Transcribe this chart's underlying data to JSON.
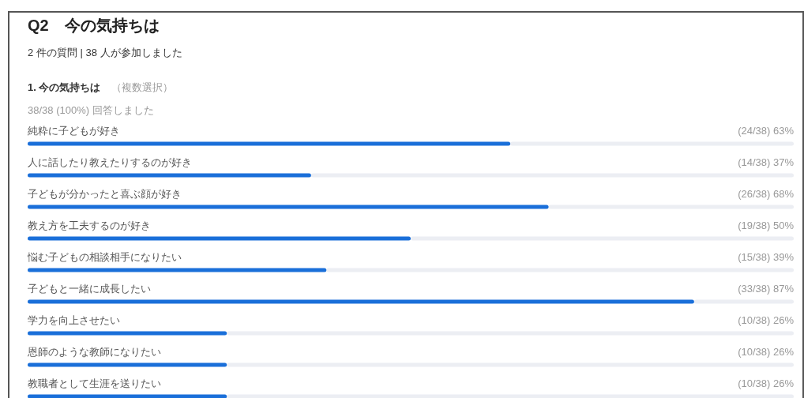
{
  "chart_data": {
    "type": "bar",
    "orientation": "horizontal",
    "title": "Q2　今の気持ちは",
    "subtitle": "2 件の質問 | 38 人が参加しました",
    "annotations": [
      "1. 今の気持ちは",
      "（複数選択）",
      "38/38 (100%) 回答しました"
    ],
    "categories": [
      "純粋に子どもが好き",
      "人に話したり教えたりするのが好き",
      "子どもが分かったと喜ぶ顔が好き",
      "教え方を工夫するのが好き",
      "悩む子どもの相談相手になりたい",
      "子どもと一緒に成長したい",
      "学力を向上させたい",
      "恩師のような教師になりたい",
      "教職者として生涯を送りたい"
    ],
    "values": [
      63,
      37,
      68,
      50,
      39,
      87,
      26,
      26,
      26
    ],
    "value_labels": [
      "(24/38) 63%",
      "(14/38) 37%",
      "(26/38) 68%",
      "(19/38) 50%",
      "(15/38) 39%",
      "(33/38) 87%",
      "(10/38) 26%",
      "(10/38) 26%",
      "(10/38) 26%"
    ],
    "color": "#1a6fd9",
    "xlim": [
      0,
      100
    ]
  }
}
